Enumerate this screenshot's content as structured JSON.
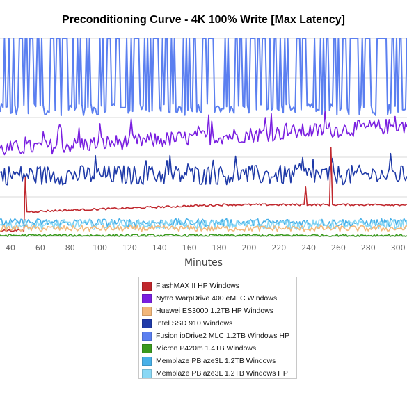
{
  "chart_data": {
    "type": "line",
    "title": "Preconditioning Curve - 4K 100% Write [Max Latency]",
    "xlabel": "Minutes",
    "ylabel": "",
    "xlim": [
      33,
      306
    ],
    "ylim": [
      0,
      100
    ],
    "x_ticks": [
      40,
      60,
      80,
      100,
      120,
      140,
      160,
      180,
      200,
      220,
      240,
      260,
      280,
      300
    ],
    "grid": true,
    "legend_position": "bottom",
    "series": [
      {
        "name": "FlashMAX II HP Windows",
        "color": "#c0272d",
        "style": "ramp",
        "base": 16,
        "amp": 1,
        "spikes": [
          [
            50,
            30
          ],
          [
            238,
            25
          ],
          [
            255,
            45
          ]
        ]
      },
      {
        "name": "Nytro WarpDrive 400 eMLC Windows",
        "color": "#7a1fe0",
        "style": "rise",
        "base": 44,
        "amp": 4
      },
      {
        "name": "Huawei ES3000 1.2TB HP Windows",
        "color": "#f2b77a",
        "style": "flat",
        "base": 4,
        "amp": 1.5
      },
      {
        "name": "Intel SSD 910 Windows",
        "color": "#1f3aa8",
        "style": "noisy",
        "base": 31,
        "amp": 5
      },
      {
        "name": "Fusion ioDrive2 MLC 1.2TB Windows HP",
        "color": "#5b7ff0",
        "style": "spiky",
        "base": 64,
        "amp": 100
      },
      {
        "name": "Micron P420m 1.4TB Windows",
        "color": "#3a9a1e",
        "style": "flat",
        "base": 0.5,
        "amp": 0.6
      },
      {
        "name": "Memblaze PBlaze3L 1.2TB Windows",
        "color": "#48b0e8",
        "style": "flat",
        "base": 7,
        "amp": 2
      },
      {
        "name": "Memblaze PBlaze3L 1.2TB Windows HP",
        "color": "#8ad8f5",
        "style": "flat",
        "base": 6,
        "amp": 2.5
      }
    ]
  }
}
